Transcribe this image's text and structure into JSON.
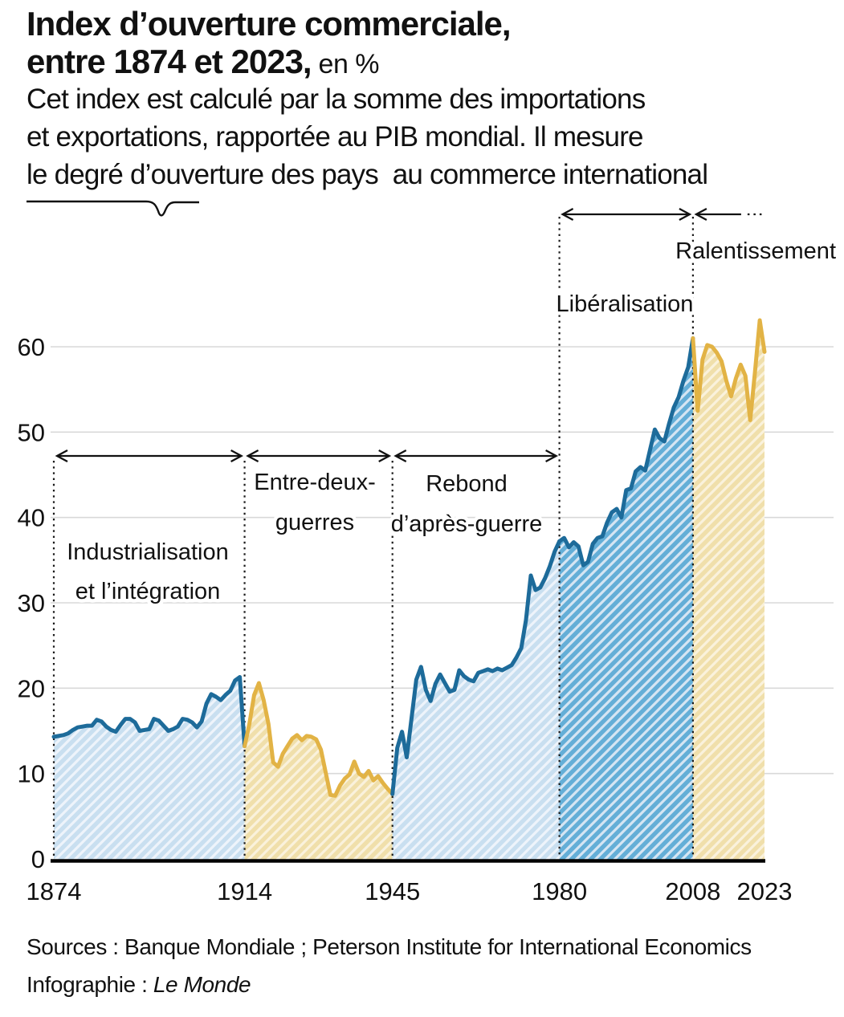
{
  "header": {
    "title_line1": "Index d’ouverture commerciale,",
    "title_line2_bold": "entre 1874 et 2023,",
    "title_line2_suffix": " en %",
    "subtitle_lines": [
      "Cet index est calculé par la somme des importations",
      "et exportations, rapportée au PIB mondial. Il mesure",
      "le degré d’ouverture des pays  au commerce international"
    ]
  },
  "footer": {
    "sources": "Sources : Banque Mondiale ; Peterson Institute for International Economics",
    "credit_label": "Infographie : ",
    "credit_name": "Le Monde"
  },
  "chart_data": {
    "type": "area",
    "title": "Index d’ouverture commerciale, entre 1874 et 2023, en %",
    "unit": "%",
    "xlim": [
      1874,
      2023
    ],
    "ylim": [
      0,
      63.5
    ],
    "y_ticks": [
      0,
      10,
      20,
      30,
      40,
      50,
      60
    ],
    "x_ticks": [
      1874,
      1914,
      1945,
      1980,
      2008,
      2023
    ],
    "grid": "horizontal",
    "legend": "none",
    "colors": {
      "blue_line": "#1d6b9a",
      "yellow_line": "#e2b345",
      "light_blue_fill": "#c9dff0",
      "light_blue_stripe": "#eef4fb",
      "mid_blue_fill": "#64aed7",
      "mid_blue_stripe": "#d6e5f3",
      "tan_fill": "#f0dfab",
      "tan_stripe": "#faf2dc",
      "gridline": "#d8d8d8",
      "axis": "#000000",
      "text": "#111111"
    },
    "periods": [
      {
        "label": "Industrialisation et l’intégration",
        "label_lines": [
          "Industrialisation",
          "et l’intégration"
        ],
        "start": 1874,
        "end": 1914,
        "fill": "light_blue",
        "line": "blue",
        "bracket": "mid"
      },
      {
        "label": "Entre-deux-guerres",
        "label_lines": [
          "Entre-deux-",
          "guerres"
        ],
        "start": 1914,
        "end": 1945,
        "fill": "tan",
        "line": "yellow",
        "bracket": "mid"
      },
      {
        "label": "Rebond d’après-guerre",
        "label_lines": [
          "Rebond",
          "d’après-guerre"
        ],
        "start": 1945,
        "end": 1980,
        "fill": "light_blue",
        "line": "blue",
        "bracket": "mid"
      },
      {
        "label": "Libéralisation",
        "label_lines": [
          "Libéralisation"
        ],
        "start": 1980,
        "end": 2008,
        "fill": "mid_blue",
        "line": "blue",
        "bracket": "top"
      },
      {
        "label": "Ralentissement",
        "label_lines": [
          "Ralentissement"
        ],
        "start": 2008,
        "end": 2023,
        "fill": "tan",
        "line": "yellow",
        "bracket": "top",
        "open_right": true
      }
    ],
    "points": [
      [
        1874,
        14.3
      ],
      [
        1875,
        14.4
      ],
      [
        1876,
        14.5
      ],
      [
        1877,
        14.7
      ],
      [
        1878,
        15.1
      ],
      [
        1879,
        15.4
      ],
      [
        1880,
        15.5
      ],
      [
        1881,
        15.6
      ],
      [
        1882,
        15.6
      ],
      [
        1883,
        16.3
      ],
      [
        1884,
        16.1
      ],
      [
        1885,
        15.5
      ],
      [
        1886,
        15.1
      ],
      [
        1887,
        14.9
      ],
      [
        1888,
        15.7
      ],
      [
        1889,
        16.4
      ],
      [
        1890,
        16.4
      ],
      [
        1891,
        16.0
      ],
      [
        1892,
        15.0
      ],
      [
        1893,
        15.1
      ],
      [
        1894,
        15.2
      ],
      [
        1895,
        16.4
      ],
      [
        1896,
        16.2
      ],
      [
        1897,
        15.6
      ],
      [
        1898,
        15.0
      ],
      [
        1899,
        15.2
      ],
      [
        1900,
        15.5
      ],
      [
        1901,
        16.4
      ],
      [
        1902,
        16.3
      ],
      [
        1903,
        16.0
      ],
      [
        1904,
        15.4
      ],
      [
        1905,
        16.1
      ],
      [
        1906,
        18.2
      ],
      [
        1907,
        19.3
      ],
      [
        1908,
        19.0
      ],
      [
        1909,
        18.6
      ],
      [
        1910,
        19.2
      ],
      [
        1911,
        19.7
      ],
      [
        1912,
        20.9
      ],
      [
        1913,
        21.3
      ],
      [
        1914,
        13.2
      ],
      [
        1915,
        15.8
      ],
      [
        1916,
        19.2
      ],
      [
        1917,
        20.6
      ],
      [
        1918,
        18.6
      ],
      [
        1919,
        15.8
      ],
      [
        1920,
        11.3
      ],
      [
        1921,
        10.8
      ],
      [
        1922,
        12.3
      ],
      [
        1923,
        13.2
      ],
      [
        1924,
        14.1
      ],
      [
        1925,
        14.5
      ],
      [
        1926,
        13.9
      ],
      [
        1927,
        14.4
      ],
      [
        1928,
        14.3
      ],
      [
        1929,
        14.0
      ],
      [
        1930,
        12.8
      ],
      [
        1931,
        10.1
      ],
      [
        1932,
        7.5
      ],
      [
        1933,
        7.4
      ],
      [
        1934,
        8.6
      ],
      [
        1935,
        9.4
      ],
      [
        1936,
        9.9
      ],
      [
        1937,
        11.4
      ],
      [
        1938,
        10.0
      ],
      [
        1939,
        9.6
      ],
      [
        1940,
        10.3
      ],
      [
        1941,
        9.2
      ],
      [
        1942,
        9.7
      ],
      [
        1943,
        8.9
      ],
      [
        1944,
        8.2
      ],
      [
        1945,
        7.6
      ],
      [
        1946,
        13.0
      ],
      [
        1947,
        14.9
      ],
      [
        1948,
        11.9
      ],
      [
        1949,
        16.5
      ],
      [
        1950,
        21.0
      ],
      [
        1951,
        22.5
      ],
      [
        1952,
        19.8
      ],
      [
        1953,
        18.5
      ],
      [
        1954,
        20.5
      ],
      [
        1955,
        21.6
      ],
      [
        1956,
        20.6
      ],
      [
        1957,
        19.6
      ],
      [
        1958,
        19.8
      ],
      [
        1959,
        22.1
      ],
      [
        1960,
        21.4
      ],
      [
        1961,
        21.0
      ],
      [
        1962,
        20.8
      ],
      [
        1963,
        21.8
      ],
      [
        1964,
        22.0
      ],
      [
        1965,
        22.2
      ],
      [
        1966,
        22.0
      ],
      [
        1967,
        22.3
      ],
      [
        1968,
        22.1
      ],
      [
        1969,
        22.4
      ],
      [
        1970,
        22.7
      ],
      [
        1971,
        23.6
      ],
      [
        1972,
        24.7
      ],
      [
        1973,
        28.0
      ],
      [
        1974,
        33.2
      ],
      [
        1975,
        31.5
      ],
      [
        1976,
        31.8
      ],
      [
        1977,
        32.9
      ],
      [
        1978,
        34.3
      ],
      [
        1979,
        36.0
      ],
      [
        1980,
        37.2
      ],
      [
        1981,
        37.6
      ],
      [
        1982,
        36.5
      ],
      [
        1983,
        37.1
      ],
      [
        1984,
        36.6
      ],
      [
        1985,
        34.4
      ],
      [
        1986,
        34.8
      ],
      [
        1987,
        36.9
      ],
      [
        1988,
        37.6
      ],
      [
        1989,
        37.8
      ],
      [
        1990,
        39.4
      ],
      [
        1991,
        40.6
      ],
      [
        1992,
        41.0
      ],
      [
        1993,
        40.0
      ],
      [
        1994,
        43.2
      ],
      [
        1995,
        43.4
      ],
      [
        1996,
        45.4
      ],
      [
        1997,
        45.9
      ],
      [
        1998,
        45.5
      ],
      [
        1999,
        47.9
      ],
      [
        2000,
        50.3
      ],
      [
        2001,
        49.3
      ],
      [
        2002,
        48.9
      ],
      [
        2003,
        51.0
      ],
      [
        2004,
        52.9
      ],
      [
        2005,
        54.1
      ],
      [
        2006,
        56.0
      ],
      [
        2007,
        57.6
      ],
      [
        2008,
        61.0
      ],
      [
        2009,
        52.5
      ],
      [
        2010,
        58.5
      ],
      [
        2011,
        60.2
      ],
      [
        2012,
        60.0
      ],
      [
        2013,
        59.3
      ],
      [
        2014,
        58.3
      ],
      [
        2015,
        56.0
      ],
      [
        2016,
        54.2
      ],
      [
        2017,
        56.3
      ],
      [
        2018,
        57.9
      ],
      [
        2019,
        56.6
      ],
      [
        2020,
        51.4
      ],
      [
        2021,
        57.0
      ],
      [
        2022,
        63.1
      ],
      [
        2023,
        59.4
      ]
    ]
  }
}
